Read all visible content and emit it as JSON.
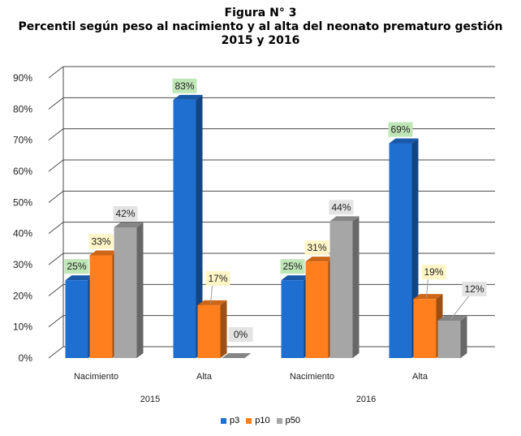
{
  "title": {
    "line1": "Figura N° 3",
    "line2": "Percentil según peso al nacimiento y al alta del neonato prematuro gestión",
    "line3": "2015 y 2016"
  },
  "chart_data": {
    "type": "bar",
    "groups": [
      {
        "label": "2015",
        "categories": [
          "Nacimiento",
          "Alta"
        ]
      },
      {
        "label": "2016",
        "categories": [
          "Nacimiento",
          "Alta"
        ]
      }
    ],
    "categories": [
      "2015 Nacimiento",
      "2015 Alta",
      "2016 Nacimiento",
      "2016 Alta"
    ],
    "category_labels": [
      "Nacimiento",
      "Alta",
      "Nacimiento",
      "Alta"
    ],
    "series": [
      {
        "name": "p3",
        "values": [
          25,
          83,
          25,
          69
        ],
        "color": "#1f6fd1"
      },
      {
        "name": "p10",
        "values": [
          33,
          17,
          31,
          19
        ],
        "color": "#ff7f1e"
      },
      {
        "name": "p50",
        "values": [
          42,
          0,
          44,
          12
        ],
        "color": "#a6a6a6"
      }
    ],
    "data_labels": [
      [
        "25%",
        "83%",
        "25%",
        "69%"
      ],
      [
        "33%",
        "17%",
        "31%",
        "19%"
      ],
      [
        "42%",
        "0%",
        "44%",
        "12%"
      ]
    ],
    "label_colors": [
      "#bfe6b6",
      "#fff5c6",
      "#e3e3e3"
    ],
    "y_ticks": [
      "0%",
      "10%",
      "20%",
      "30%",
      "40%",
      "50%",
      "60%",
      "70%",
      "80%",
      "90%"
    ],
    "ylim": [
      0,
      90
    ],
    "grid": true,
    "legend_position": "bottom",
    "style": "3d-column"
  }
}
